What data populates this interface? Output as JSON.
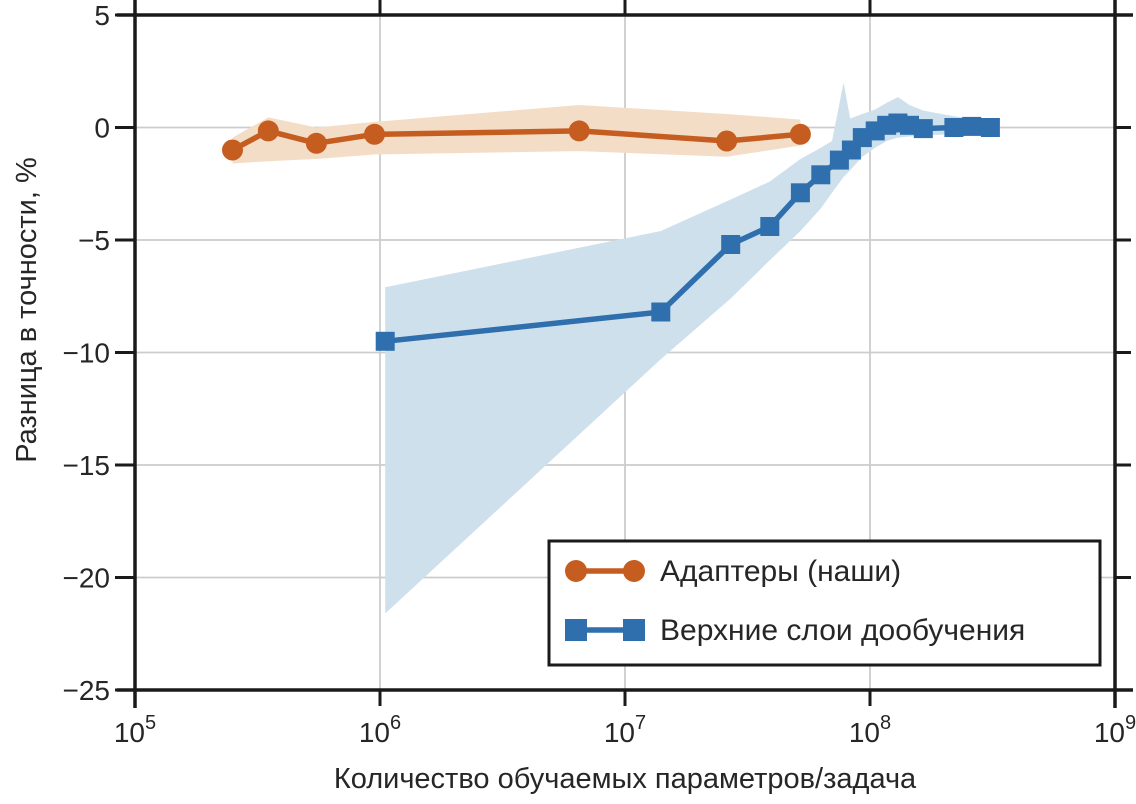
{
  "chart_data": {
    "type": "line",
    "title": "",
    "xlabel": "Количество обучаемых параметров/задача",
    "ylabel": "Разница в точности, %",
    "xscale": "log",
    "xlim": [
      100000,
      1000000000
    ],
    "ylim": [
      -25,
      5
    ],
    "grid": true,
    "background": "#ffffff",
    "grid_color": "#cccccc",
    "axis_color": "#1a1a1a",
    "text_color": "#262626",
    "legend_position": "lower right inside",
    "xticks": [
      {
        "base": "10",
        "exp": "5",
        "value": 100000
      },
      {
        "base": "10",
        "exp": "6",
        "value": 1000000
      },
      {
        "base": "10",
        "exp": "7",
        "value": 10000000
      },
      {
        "base": "10",
        "exp": "8",
        "value": 100000000
      },
      {
        "base": "10",
        "exp": "9",
        "value": 1000000000
      }
    ],
    "yticks": [
      {
        "label": "5",
        "value": 5
      },
      {
        "label": "0",
        "value": 0
      },
      {
        "label": "−5",
        "value": -5
      },
      {
        "label": "−10",
        "value": -10
      },
      {
        "label": "−15",
        "value": -15
      },
      {
        "label": "−20",
        "value": -20
      },
      {
        "label": "−25",
        "value": -25
      }
    ],
    "series": [
      {
        "name": "Адаптеры (наши)",
        "color": "#c65d20",
        "band_color": "#f4ddc7",
        "marker": "circle",
        "x": [
          250000,
          350000,
          550000,
          950000,
          6500000,
          26000000,
          52000000
        ],
        "y": [
          -1.0,
          -0.15,
          -0.7,
          -0.3,
          -0.15,
          -0.6,
          -0.3
        ],
        "band": {
          "x": [
            250000,
            350000,
            550000,
            950000,
            6500000,
            26000000,
            52000000
          ],
          "upper": [
            -0.45,
            0.45,
            0.0,
            0.25,
            1.0,
            0.6,
            0.35
          ],
          "lower": [
            -1.6,
            -1.5,
            -1.4,
            -1.2,
            -1.05,
            -1.3,
            -0.8
          ]
        }
      },
      {
        "name": "Верхние слои дообучения",
        "color": "#2f6fad",
        "band_color": "#cfe0ed",
        "marker": "square",
        "x": [
          1050000,
          14000000,
          27000000,
          39000000,
          52000000,
          63000000,
          75000000,
          84000000,
          93000000,
          105000000,
          117000000,
          130000000,
          145000000,
          165000000,
          220000000,
          260000000,
          310000000
        ],
        "y": [
          -9.5,
          -8.2,
          -5.2,
          -4.4,
          -2.9,
          -2.1,
          -1.45,
          -1.0,
          -0.45,
          -0.15,
          0.1,
          0.2,
          0.1,
          -0.05,
          0.0,
          0.05,
          0.0
        ],
        "band": {
          "x": [
            1050000,
            14000000,
            27000000,
            39000000,
            52000000,
            63000000,
            70000000,
            78000000,
            83000000,
            93000000,
            105000000,
            117000000,
            130000000,
            145000000,
            165000000,
            220000000,
            310000000
          ],
          "upper": [
            -7.1,
            -4.6,
            -3.2,
            -2.4,
            -1.4,
            -0.9,
            -0.6,
            2.0,
            0.4,
            0.6,
            0.8,
            1.1,
            1.35,
            1.0,
            0.75,
            0.5,
            0.3
          ],
          "lower": [
            -21.6,
            -10.3,
            -7.6,
            -5.9,
            -4.6,
            -3.6,
            -2.9,
            -2.2,
            -1.9,
            -1.3,
            -0.9,
            -0.6,
            -0.45,
            -0.4,
            -0.35,
            -0.3,
            -0.25
          ]
        }
      }
    ]
  }
}
